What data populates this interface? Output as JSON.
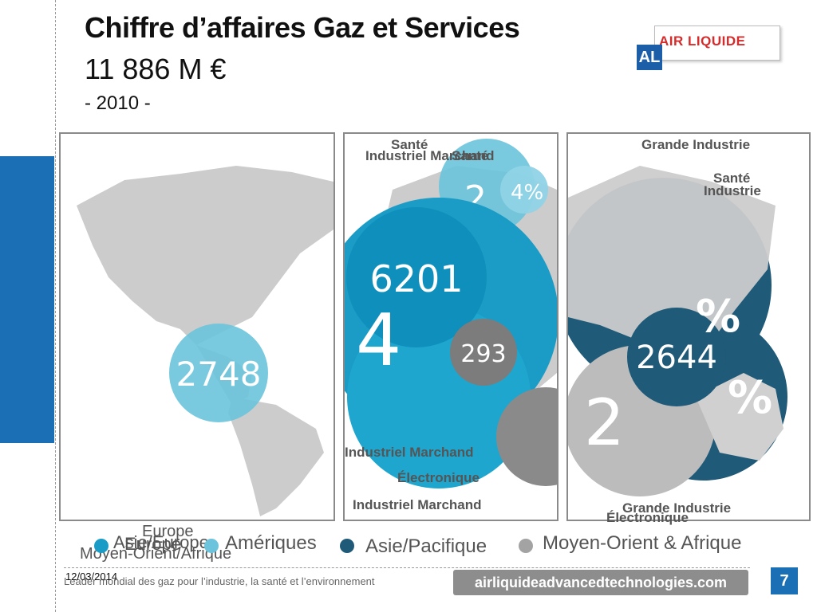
{
  "title": "Chiffre d’affaires Gaz et Services",
  "amount": "11 886 M €",
  "year": "- 2010 -",
  "logo": {
    "text": "AIR LIQUIDE",
    "mark": "AL"
  },
  "panels": {
    "americas": {
      "value": "2748"
    },
    "europe": {
      "value_main": "6201",
      "value_mea": "293",
      "pct_big": "4",
      "pct_top": "4%",
      "pct_top_partial": "2",
      "labels": [
        "Santé",
        "Industriel Marchand",
        "Santé",
        "Industriel Marchand",
        "Électronique",
        "Industriel Marchand"
      ]
    },
    "asia": {
      "value": "2644",
      "pct1": "%",
      "pct2": "%",
      "pct_small": "2",
      "labels": [
        "Grande Industrie",
        "Santé",
        "Industrie",
        "Grande Industrie",
        "Électronique"
      ]
    }
  },
  "legend": {
    "stray": [
      "Europe",
      "Asie/Europe",
      "Amériques",
      "Moyen-Orient/Afrique"
    ],
    "items": [
      "Europe",
      "Amériques",
      "Asie/Pacifique",
      "Moyen-Orient & Afrique"
    ]
  },
  "footer": {
    "date": "12/03/2014",
    "tagline": "Leader mondial des gaz pour l’industrie, la santé et l’environnement",
    "url": "airliquideadvancedtechnologies.com",
    "page": "7"
  },
  "colors": {
    "europe": "#1a9cc6",
    "americas": "#6cc4dc",
    "asia": "#1f5a78",
    "mea": "#8a8a8a",
    "accent": "#1a6fb5"
  }
}
